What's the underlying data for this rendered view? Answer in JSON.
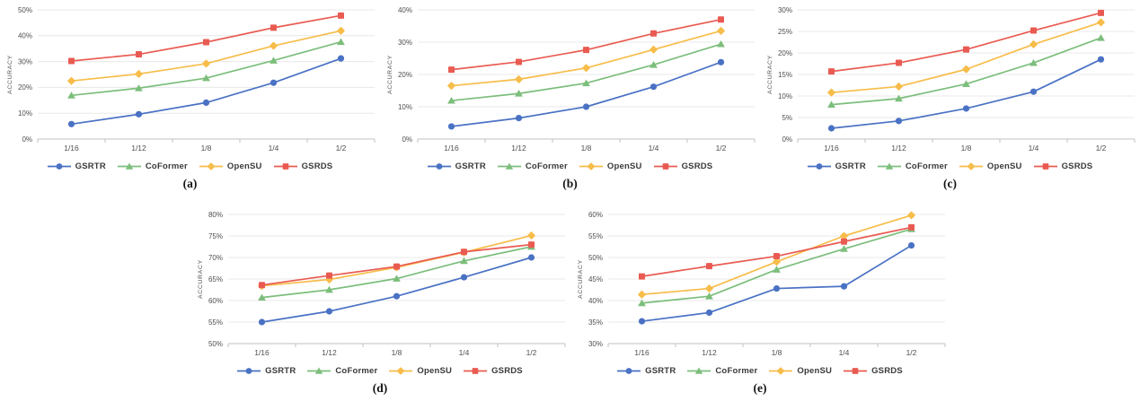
{
  "figure_colors": {
    "grid": "#e8e8e8",
    "axis": "#c0c0c0",
    "tick_text": "#4f4f4f",
    "legend_text": "#3a3a3a",
    "series": {
      "GSRTR": "#4A72C4",
      "CoFormer": "#7CBE7C",
      "OpenSU": "#F7BD4A",
      "GSRDS": "#E95B52"
    }
  },
  "chart_data": [
    {
      "type": "line",
      "caption": "(a)",
      "ylabel": "ACCURACY",
      "categories": [
        "1/16",
        "1/12",
        "1/8",
        "1/4",
        "1/2"
      ],
      "ylim": [
        0,
        50
      ],
      "ytick_step": 10,
      "grid": true,
      "legend_position": "bottom",
      "series": [
        {
          "name": "GSRTR",
          "marker": "circle",
          "color": "#4A72C4",
          "values": [
            5.8,
            9.6,
            14.1,
            21.8,
            31.2
          ]
        },
        {
          "name": "CoFormer",
          "marker": "triangle",
          "color": "#7CBE7C",
          "values": [
            16.9,
            19.7,
            23.6,
            30.4,
            37.6
          ]
        },
        {
          "name": "OpenSU",
          "marker": "diamond",
          "color": "#F7BD4A",
          "values": [
            22.5,
            25.2,
            29.2,
            36.1,
            41.9
          ]
        },
        {
          "name": "GSRDS",
          "marker": "square",
          "color": "#E95B52",
          "values": [
            30.2,
            32.8,
            37.5,
            43.1,
            47.8
          ]
        }
      ]
    },
    {
      "type": "line",
      "caption": "(b)",
      "ylabel": "ACCURACY",
      "categories": [
        "1/16",
        "1/12",
        "1/8",
        "1/4",
        "1/2"
      ],
      "ylim": [
        0,
        40
      ],
      "ytick_step": 10,
      "grid": true,
      "legend_position": "bottom",
      "series": [
        {
          "name": "GSRTR",
          "marker": "circle",
          "color": "#4A72C4",
          "values": [
            3.9,
            6.5,
            10.0,
            16.2,
            23.8
          ]
        },
        {
          "name": "CoFormer",
          "marker": "triangle",
          "color": "#7CBE7C",
          "values": [
            11.9,
            14.1,
            17.3,
            23.0,
            29.4
          ]
        },
        {
          "name": "OpenSU",
          "marker": "diamond",
          "color": "#F7BD4A",
          "values": [
            16.5,
            18.5,
            22.0,
            27.7,
            33.5
          ]
        },
        {
          "name": "GSRDS",
          "marker": "square",
          "color": "#E95B52",
          "values": [
            21.5,
            23.9,
            27.6,
            32.7,
            37.0
          ]
        }
      ]
    },
    {
      "type": "line",
      "caption": "(c)",
      "ylabel": "ACCURACY",
      "categories": [
        "1/16",
        "1/12",
        "1/8",
        "1/4",
        "1/2"
      ],
      "ylim": [
        0,
        30
      ],
      "ytick_step": 5,
      "grid": true,
      "legend_position": "bottom",
      "series": [
        {
          "name": "GSRTR",
          "marker": "circle",
          "color": "#4A72C4",
          "values": [
            2.5,
            4.2,
            7.1,
            11.0,
            18.5
          ]
        },
        {
          "name": "CoFormer",
          "marker": "triangle",
          "color": "#7CBE7C",
          "values": [
            8.0,
            9.4,
            12.8,
            17.7,
            23.5
          ]
        },
        {
          "name": "OpenSU",
          "marker": "diamond",
          "color": "#F7BD4A",
          "values": [
            10.8,
            12.2,
            16.2,
            22.0,
            27.1
          ]
        },
        {
          "name": "GSRDS",
          "marker": "square",
          "color": "#E95B52",
          "values": [
            15.7,
            17.7,
            20.8,
            25.2,
            29.3
          ]
        }
      ]
    },
    {
      "type": "line",
      "caption": "(d)",
      "ylabel": "ACCURACY",
      "categories": [
        "1/16",
        "1/12",
        "1/8",
        "1/4",
        "1/2"
      ],
      "ylim": [
        50,
        80
      ],
      "ytick_step": 5,
      "grid": true,
      "legend_position": "bottom",
      "series": [
        {
          "name": "GSRTR",
          "marker": "circle",
          "color": "#4A72C4",
          "values": [
            55.0,
            57.5,
            61.0,
            65.4,
            70.0
          ]
        },
        {
          "name": "CoFormer",
          "marker": "triangle",
          "color": "#7CBE7C",
          "values": [
            60.7,
            62.5,
            65.1,
            69.2,
            72.5
          ]
        },
        {
          "name": "OpenSU",
          "marker": "diamond",
          "color": "#F7BD4A",
          "values": [
            63.4,
            64.9,
            67.7,
            71.2,
            75.1
          ]
        },
        {
          "name": "GSRDS",
          "marker": "square",
          "color": "#E95B52",
          "values": [
            63.6,
            65.8,
            67.9,
            71.3,
            73.0
          ]
        }
      ]
    },
    {
      "type": "line",
      "caption": "(e)",
      "ylabel": "ACCURACY",
      "categories": [
        "1/16",
        "1/12",
        "1/8",
        "1/4",
        "1/2"
      ],
      "ylim": [
        30,
        60
      ],
      "ytick_step": 5,
      "grid": true,
      "legend_position": "bottom",
      "series": [
        {
          "name": "GSRTR",
          "marker": "circle",
          "color": "#4A72C4",
          "values": [
            35.2,
            37.2,
            42.8,
            43.3,
            52.8
          ]
        },
        {
          "name": "CoFormer",
          "marker": "triangle",
          "color": "#7CBE7C",
          "values": [
            39.4,
            41.0,
            47.2,
            52.0,
            56.6
          ]
        },
        {
          "name": "OpenSU",
          "marker": "diamond",
          "color": "#F7BD4A",
          "values": [
            41.4,
            42.8,
            49.0,
            55.0,
            59.8
          ]
        },
        {
          "name": "GSRDS",
          "marker": "square",
          "color": "#E95B52",
          "values": [
            45.6,
            48.0,
            50.3,
            53.7,
            57.0
          ]
        }
      ]
    }
  ]
}
